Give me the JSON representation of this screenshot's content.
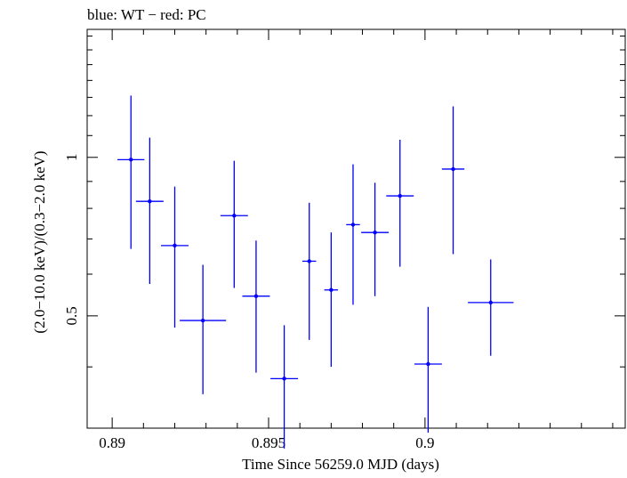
{
  "chart_data": {
    "type": "scatter",
    "title": "blue: WT − red: PC",
    "xlabel": "Time Since 56259.0 MJD (days)",
    "ylabel": "(2.0−10.0 keV)/(0.3−2.0 keV)",
    "xlim": [
      0.8892,
      0.9064
    ],
    "ylim": [
      0.306,
      1.75
    ],
    "yscale": "log",
    "x_ticks": [
      0.89,
      0.895,
      0.9
    ],
    "x_tick_labels": [
      "0.89",
      "0.895",
      "0.9"
    ],
    "y_ticks": [
      0.5,
      1
    ],
    "y_tick_labels": [
      "0.5",
      "1"
    ],
    "grid": false,
    "series": [
      {
        "color": "#0000ff",
        "points": [
          {
            "x": 0.8906,
            "xerr": 0.00043,
            "y": 0.99,
            "ylo": 0.67,
            "yhi": 1.31
          },
          {
            "x": 0.8912,
            "xerr": 0.00044,
            "y": 0.825,
            "ylo": 0.575,
            "yhi": 1.09
          },
          {
            "x": 0.892,
            "xerr": 0.00044,
            "y": 0.68,
            "ylo": 0.475,
            "yhi": 0.88
          },
          {
            "x": 0.8929,
            "xerr": 0.00074,
            "y": 0.49,
            "ylo": 0.355,
            "yhi": 0.625
          },
          {
            "x": 0.8939,
            "xerr": 0.00044,
            "y": 0.775,
            "ylo": 0.565,
            "yhi": 0.985
          },
          {
            "x": 0.8946,
            "xerr": 0.00044,
            "y": 0.545,
            "ylo": 0.39,
            "yhi": 0.695
          },
          {
            "x": 0.8955,
            "xerr": 0.00044,
            "y": 0.38,
            "ylo": 0.28,
            "yhi": 0.48
          },
          {
            "x": 0.8963,
            "xerr": 0.00022,
            "y": 0.635,
            "ylo": 0.45,
            "yhi": 0.82
          },
          {
            "x": 0.897,
            "xerr": 0.00022,
            "y": 0.56,
            "ylo": 0.4,
            "yhi": 0.72
          },
          {
            "x": 0.8977,
            "xerr": 0.00022,
            "y": 0.745,
            "ylo": 0.525,
            "yhi": 0.97
          },
          {
            "x": 0.8984,
            "xerr": 0.00044,
            "y": 0.72,
            "ylo": 0.545,
            "yhi": 0.895
          },
          {
            "x": 0.8992,
            "xerr": 0.00044,
            "y": 0.845,
            "ylo": 0.62,
            "yhi": 1.08
          },
          {
            "x": 0.9001,
            "xerr": 0.00044,
            "y": 0.405,
            "ylo": 0.3,
            "yhi": 0.52
          },
          {
            "x": 0.9009,
            "xerr": 0.00036,
            "y": 0.95,
            "ylo": 0.655,
            "yhi": 1.25
          },
          {
            "x": 0.9021,
            "xerr": 0.00073,
            "y": 0.53,
            "ylo": 0.42,
            "yhi": 0.64
          }
        ]
      }
    ]
  }
}
